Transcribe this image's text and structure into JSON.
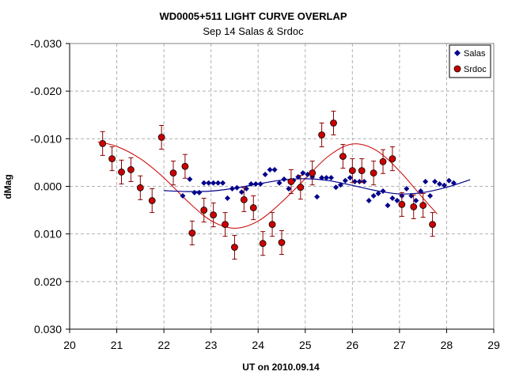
{
  "chart_data": {
    "type": "scatter",
    "title": "WD0005+511 LIGHT CURVE OVERLAP",
    "subtitle": "Sep 14 Salas & Srdoc",
    "xlabel": "UT on 2010.09.14",
    "ylabel": "dMag",
    "xlim": [
      20,
      29
    ],
    "ylim": [
      0.03,
      -0.03
    ],
    "y_inverted": true,
    "x_ticks": [
      "20",
      "21",
      "22",
      "23",
      "24",
      "25",
      "26",
      "27",
      "28",
      "29"
    ],
    "y_ticks": [
      "-0.030",
      "-0.020",
      "-0.010",
      "0.000",
      "0.010",
      "0.020",
      "0.030"
    ],
    "grid": true,
    "legend_position": "top-right",
    "series": [
      {
        "name": "Salas",
        "marker": "diamond",
        "color": "#00008B",
        "points": [
          [
            22.4,
            0.002
          ],
          [
            22.55,
            -0.0015
          ],
          [
            22.65,
            0.0013
          ],
          [
            22.75,
            0.0013
          ],
          [
            22.85,
            -0.0007
          ],
          [
            22.95,
            -0.0007
          ],
          [
            23.05,
            -0.0007
          ],
          [
            23.15,
            -0.0007
          ],
          [
            23.25,
            -0.0007
          ],
          [
            23.35,
            0.0025
          ],
          [
            23.45,
            0.0005
          ],
          [
            23.55,
            0.0003
          ],
          [
            23.65,
            0.0012
          ],
          [
            23.75,
            0.0005
          ],
          [
            23.85,
            -0.0005
          ],
          [
            23.95,
            -0.0005
          ],
          [
            24.05,
            -0.0005
          ],
          [
            24.15,
            -0.0025
          ],
          [
            24.25,
            -0.0035
          ],
          [
            24.35,
            -0.0035
          ],
          [
            24.45,
            -0.0007
          ],
          [
            24.55,
            -0.0015
          ],
          [
            24.65,
            0.0005
          ],
          [
            24.75,
            -0.0012
          ],
          [
            24.85,
            -0.002
          ],
          [
            24.95,
            -0.0028
          ],
          [
            25.05,
            -0.0025
          ],
          [
            25.15,
            -0.002
          ],
          [
            25.25,
            0.0022
          ],
          [
            25.35,
            -0.0018
          ],
          [
            25.45,
            -0.0018
          ],
          [
            25.55,
            -0.0018
          ],
          [
            25.65,
            0.0002
          ],
          [
            25.75,
            -0.0003
          ],
          [
            25.85,
            -0.0012
          ],
          [
            25.95,
            -0.0018
          ],
          [
            26.05,
            -0.001
          ],
          [
            26.15,
            -0.001
          ],
          [
            26.25,
            -0.001
          ],
          [
            26.35,
            0.003
          ],
          [
            26.45,
            0.002
          ],
          [
            26.55,
            0.0015
          ],
          [
            26.65,
            0.001
          ],
          [
            26.75,
            0.004
          ],
          [
            26.85,
            0.0025
          ],
          [
            26.95,
            0.003
          ],
          [
            27.05,
            0.002
          ],
          [
            27.15,
            0.0005
          ],
          [
            27.25,
            0.002
          ],
          [
            27.35,
            0.003
          ],
          [
            27.45,
            0.001
          ],
          [
            27.55,
            -0.001
          ],
          [
            27.65,
            0.002
          ],
          [
            27.75,
            -0.001
          ],
          [
            27.85,
            -0.0005
          ],
          [
            27.95,
            -0.0002
          ],
          [
            28.05,
            -0.0012
          ],
          [
            28.15,
            -0.0007
          ]
        ],
        "fit_curve": [
          [
            22.0,
            0.0009
          ],
          [
            22.5,
            0.0011
          ],
          [
            23.0,
            0.001
          ],
          [
            23.5,
            0.0004
          ],
          [
            24.0,
            -0.0005
          ],
          [
            24.5,
            -0.0013
          ],
          [
            25.0,
            -0.0016
          ],
          [
            25.5,
            -0.0012
          ],
          [
            26.0,
            -0.0002
          ],
          [
            26.5,
            0.0009
          ],
          [
            27.0,
            0.0016
          ],
          [
            27.5,
            0.0013
          ],
          [
            28.0,
            0.0002
          ],
          [
            28.5,
            -0.0014
          ]
        ]
      },
      {
        "name": "Srdoc",
        "marker": "circle",
        "color": "#CC0000",
        "error_bar": 0.0025,
        "points": [
          [
            20.7,
            -0.009
          ],
          [
            20.9,
            -0.0058
          ],
          [
            21.1,
            -0.003
          ],
          [
            21.3,
            -0.0035
          ],
          [
            21.5,
            0.0003
          ],
          [
            21.75,
            0.003
          ],
          [
            21.95,
            -0.0103
          ],
          [
            22.2,
            -0.0028
          ],
          [
            22.45,
            -0.0042
          ],
          [
            22.6,
            0.0098
          ],
          [
            22.85,
            0.005
          ],
          [
            23.05,
            0.006
          ],
          [
            23.3,
            0.008
          ],
          [
            23.5,
            0.0128
          ],
          [
            23.7,
            0.0028
          ],
          [
            23.9,
            0.0045
          ],
          [
            24.1,
            0.012
          ],
          [
            24.3,
            0.008
          ],
          [
            24.5,
            0.0118
          ],
          [
            24.7,
            -0.001
          ],
          [
            24.9,
            0.0002
          ],
          [
            25.15,
            -0.0028
          ],
          [
            25.35,
            -0.0108
          ],
          [
            25.6,
            -0.0133
          ],
          [
            25.8,
            -0.0063
          ],
          [
            26.0,
            -0.0033
          ],
          [
            26.2,
            -0.0033
          ],
          [
            26.45,
            -0.0028
          ],
          [
            26.65,
            -0.0052
          ],
          [
            26.85,
            -0.0058
          ],
          [
            27.05,
            0.0038
          ],
          [
            27.3,
            0.0043
          ],
          [
            27.5,
            0.004
          ],
          [
            27.7,
            0.008
          ]
        ],
        "fit_curve": [
          [
            20.6,
            -0.0093
          ],
          [
            21.0,
            -0.0084
          ],
          [
            21.5,
            -0.0058
          ],
          [
            22.0,
            -0.0018
          ],
          [
            22.5,
            0.0031
          ],
          [
            23.0,
            0.0072
          ],
          [
            23.5,
            0.0088
          ],
          [
            24.0,
            0.0073
          ],
          [
            24.5,
            0.0033
          ],
          [
            25.0,
            -0.0016
          ],
          [
            25.5,
            -0.0064
          ],
          [
            26.0,
            -0.0089
          ],
          [
            26.5,
            -0.0076
          ],
          [
            27.0,
            -0.0032
          ],
          [
            27.5,
            0.0025
          ],
          [
            27.8,
            0.0058
          ]
        ]
      }
    ]
  }
}
